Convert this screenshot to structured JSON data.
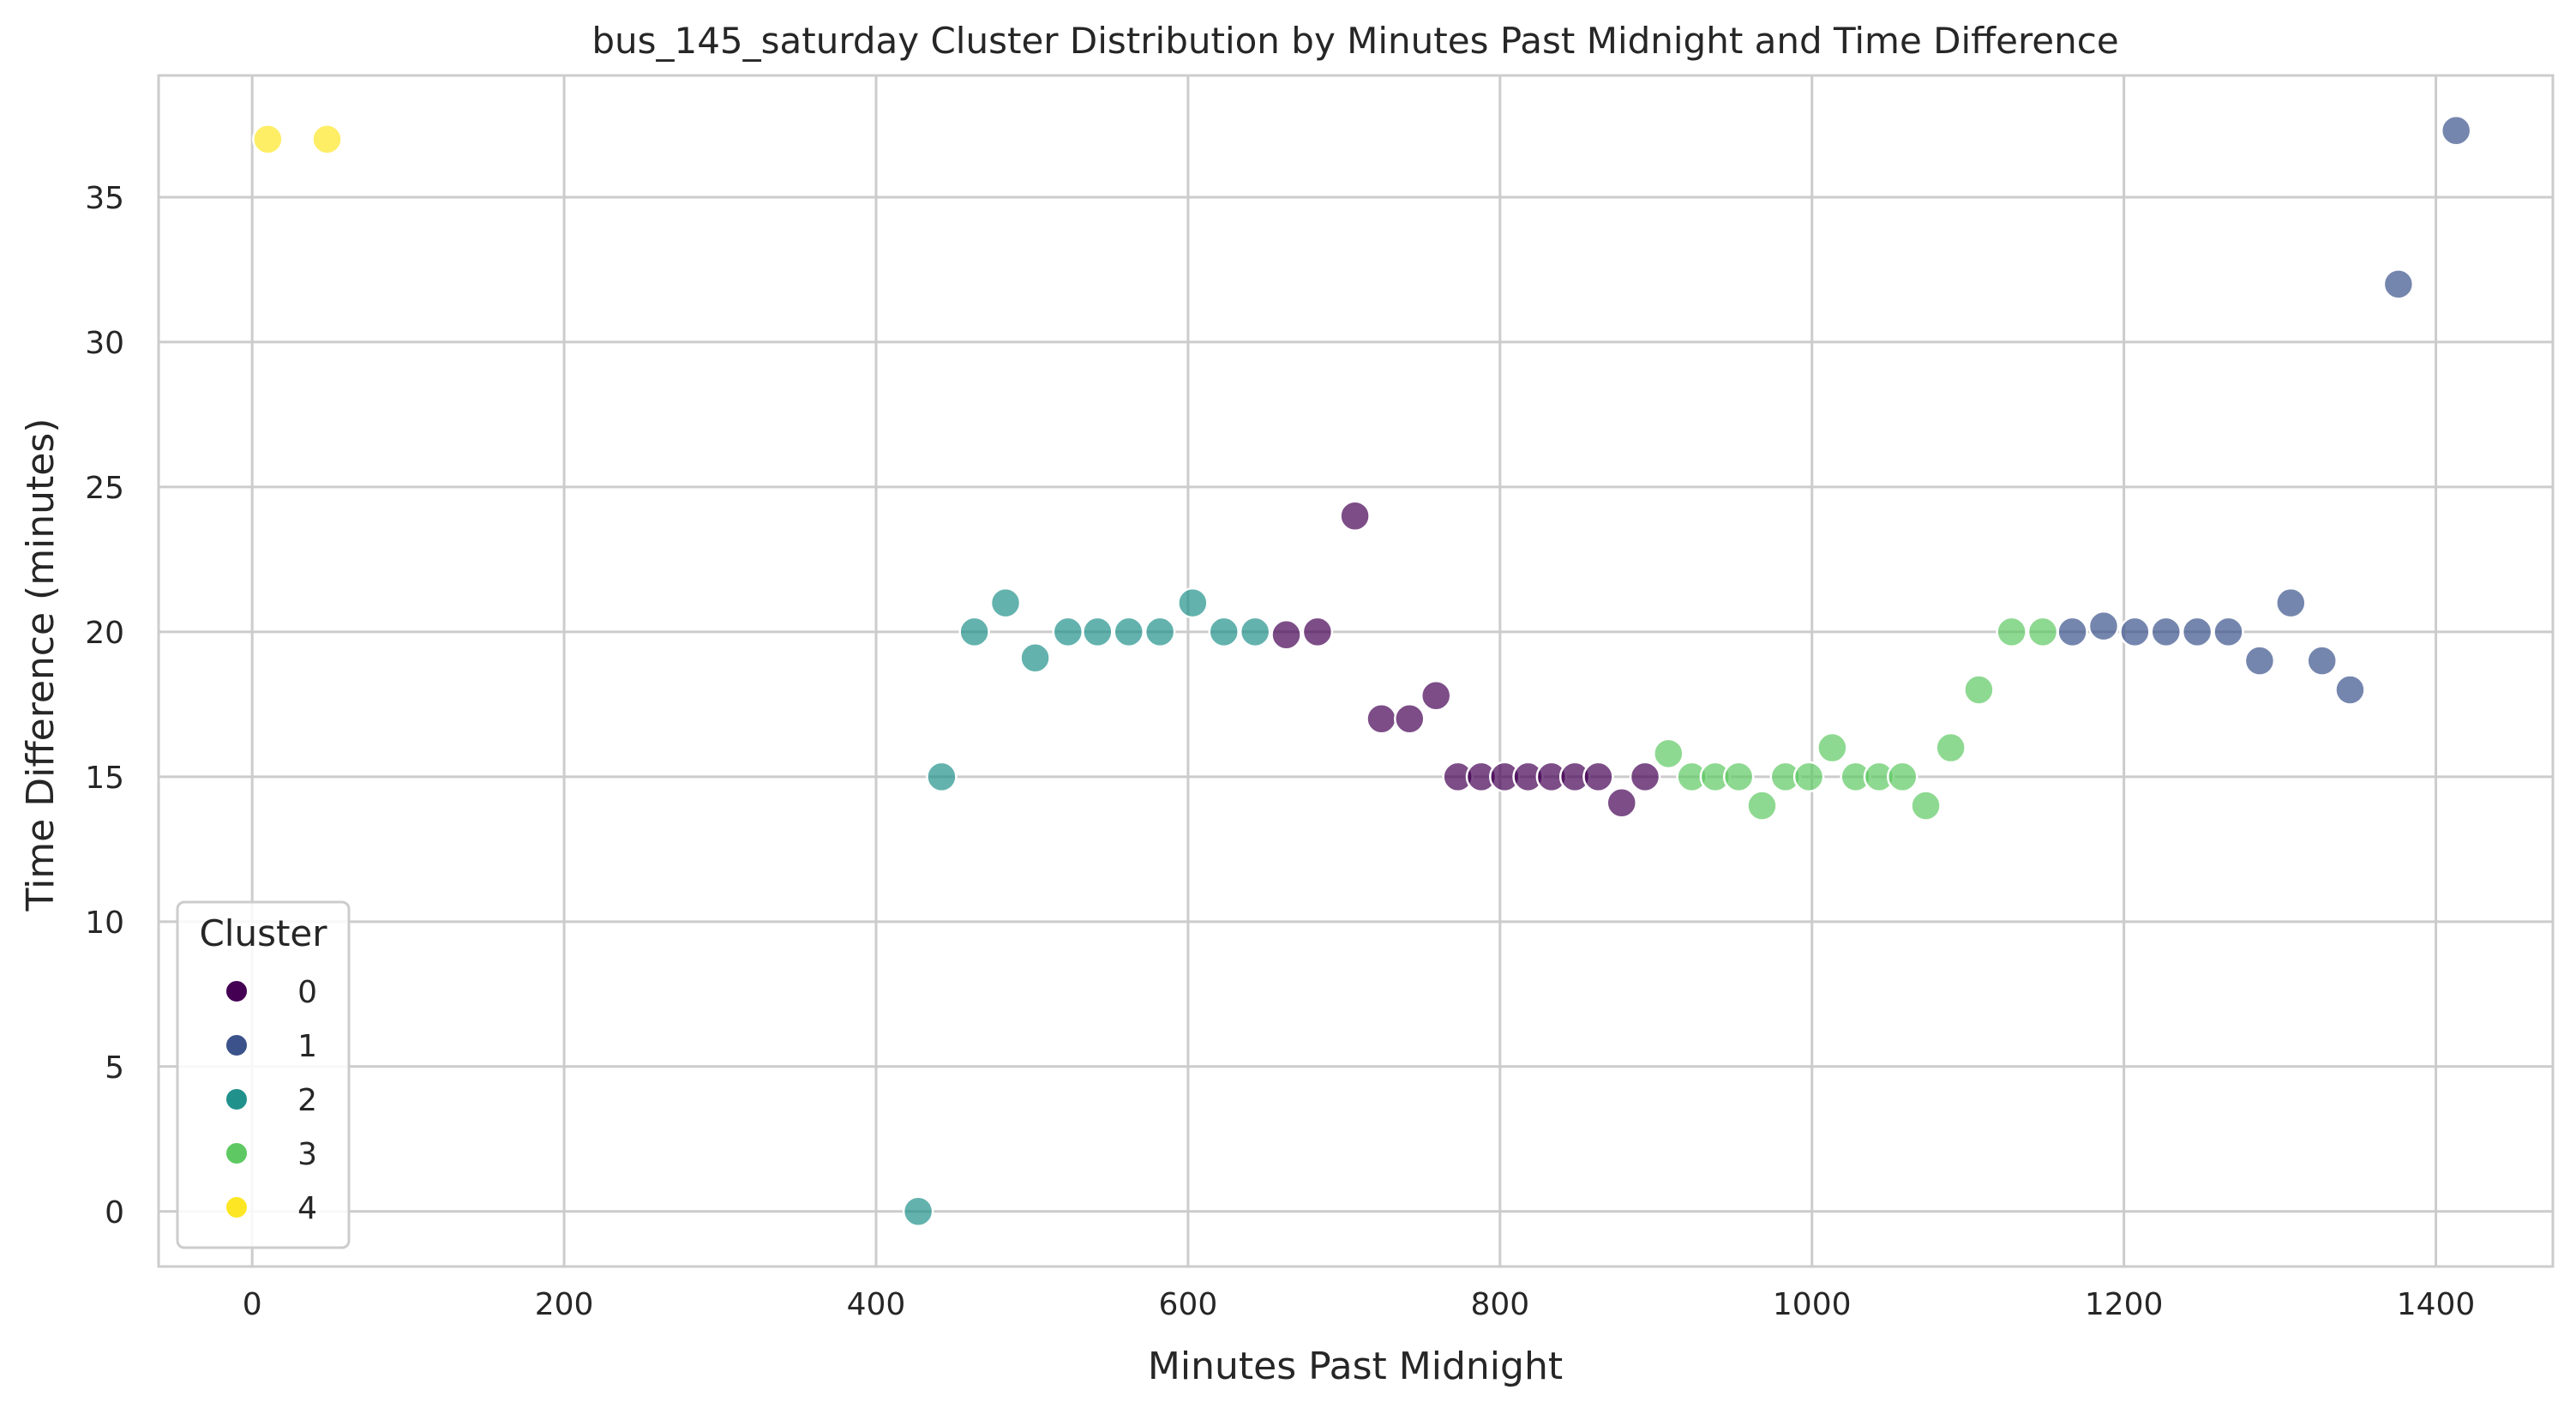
{
  "chart_data": {
    "type": "scatter",
    "title": "bus_145_saturday Cluster Distribution by Minutes Past Midnight and Time Difference",
    "xlabel": "Minutes Past Midnight",
    "ylabel": "Time Difference (minutes)",
    "xlim": [
      -60,
      1475
    ],
    "ylim": [
      -1.9,
      39.2
    ],
    "xticks": [
      0,
      200,
      400,
      600,
      800,
      1000,
      1200,
      1400
    ],
    "yticks": [
      0,
      5,
      10,
      15,
      20,
      25,
      30,
      35
    ],
    "grid": true,
    "legend": {
      "title": "Cluster",
      "position": "lower-left"
    },
    "series": [
      {
        "name": "0",
        "color": "#440154",
        "points": [
          [
            663,
            19.9
          ],
          [
            683,
            20
          ],
          [
            707,
            24
          ],
          [
            724,
            17
          ],
          [
            742,
            17
          ],
          [
            759,
            17.8
          ],
          [
            773,
            15
          ],
          [
            788,
            15
          ],
          [
            803,
            15
          ],
          [
            818,
            15
          ],
          [
            833,
            15
          ],
          [
            848,
            15
          ],
          [
            863,
            15
          ],
          [
            878,
            14.1
          ],
          [
            893,
            15
          ]
        ]
      },
      {
        "name": "1",
        "color": "#3b528b",
        "points": [
          [
            1167,
            20
          ],
          [
            1187,
            20.2
          ],
          [
            1207,
            20
          ],
          [
            1227,
            20
          ],
          [
            1247,
            20
          ],
          [
            1267,
            20
          ],
          [
            1287,
            19
          ],
          [
            1307,
            21
          ],
          [
            1327,
            19
          ],
          [
            1345,
            18
          ],
          [
            1376,
            32
          ],
          [
            1413,
            37.3
          ]
        ]
      },
      {
        "name": "2",
        "color": "#21918c",
        "points": [
          [
            427,
            0
          ],
          [
            442,
            15
          ],
          [
            463,
            20
          ],
          [
            483,
            21
          ],
          [
            502,
            19.1
          ],
          [
            523,
            20
          ],
          [
            542,
            20
          ],
          [
            562,
            20
          ],
          [
            582,
            20
          ],
          [
            603,
            21
          ],
          [
            623,
            20
          ],
          [
            643,
            20
          ]
        ]
      },
      {
        "name": "3",
        "color": "#5ec962",
        "points": [
          [
            908,
            15.8
          ],
          [
            923,
            15
          ],
          [
            938,
            15
          ],
          [
            953,
            15
          ],
          [
            968,
            14
          ],
          [
            983,
            15
          ],
          [
            998,
            15
          ],
          [
            1013,
            16
          ],
          [
            1028,
            15
          ],
          [
            1043,
            15
          ],
          [
            1058,
            15
          ],
          [
            1073,
            14
          ],
          [
            1089,
            16
          ],
          [
            1107,
            18
          ],
          [
            1128,
            20
          ],
          [
            1148,
            20
          ]
        ]
      },
      {
        "name": "4",
        "color": "#fde725",
        "points": [
          [
            10,
            37
          ],
          [
            48,
            37
          ]
        ]
      }
    ]
  }
}
